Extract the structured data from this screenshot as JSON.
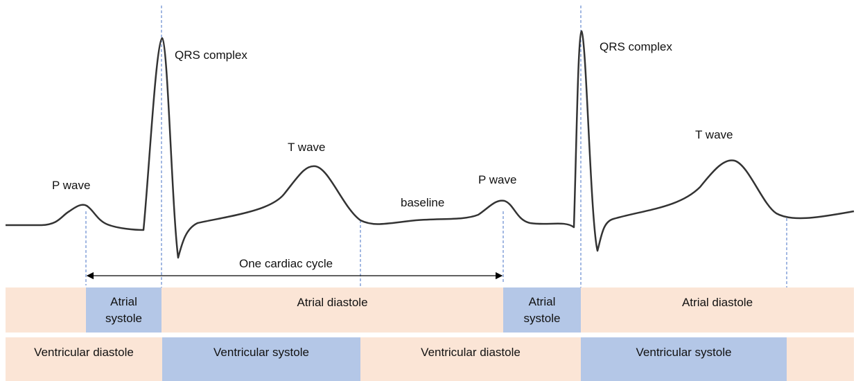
{
  "wave_labels": [
    "P wave",
    "QRS complex",
    "T wave",
    "baseline",
    "P wave",
    "QRS complex",
    "T wave"
  ],
  "cycle_label": "One cardiac cycle",
  "atrial_row": [
    "Atrial systole",
    "Atrial diastole",
    "Atrial systole",
    "Atrial diastole"
  ],
  "ventricular_row": [
    "Ventricular diastole",
    "Ventricular systole",
    "Ventricular diastole",
    "Ventricular systole"
  ]
}
